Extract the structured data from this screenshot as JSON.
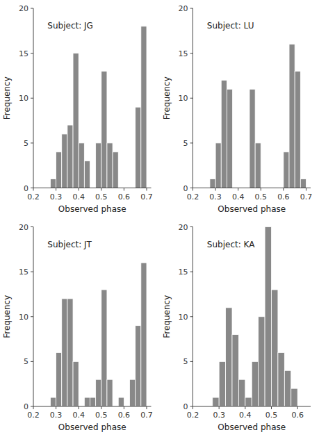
{
  "chart_data": [
    {
      "type": "histogram",
      "annotations": [
        "Subject: JG"
      ],
      "xlabel": "Observed phase",
      "ylabel": "Frequency",
      "bins": [
        0.275,
        0.3,
        0.325,
        0.35,
        0.375,
        0.4,
        0.425,
        0.45,
        0.475,
        0.5,
        0.525,
        0.55,
        0.575,
        0.6,
        0.625,
        0.65,
        0.675,
        0.7
      ],
      "values": [
        1,
        4,
        6,
        7,
        15,
        5,
        3,
        0,
        5,
        13,
        5,
        4,
        0,
        0,
        0,
        9,
        18
      ],
      "color": "#888888",
      "xlim": [
        0.2,
        0.72
      ],
      "xticks": [
        0.2,
        0.3,
        0.4,
        0.5,
        0.6,
        0.7
      ],
      "ylim": [
        0,
        20
      ],
      "yticks": [
        0,
        5,
        10,
        15,
        20
      ],
      "grid": false
    },
    {
      "type": "histogram",
      "annotations": [
        "Subject: LU"
      ],
      "xlabel": "Observed phase",
      "ylabel": "Frequency",
      "bins": [
        0.275,
        0.3,
        0.325,
        0.35,
        0.375,
        0.4,
        0.425,
        0.45,
        0.475,
        0.5,
        0.525,
        0.55,
        0.575,
        0.6,
        0.625,
        0.65,
        0.675,
        0.7
      ],
      "values": [
        1,
        5,
        12,
        11,
        0,
        0,
        0,
        11,
        5,
        0,
        0,
        0,
        0,
        4,
        16,
        13,
        1
      ],
      "color": "#888888",
      "xlim": [
        0.2,
        0.72
      ],
      "xticks": [
        0.2,
        0.3,
        0.4,
        0.5,
        0.6,
        0.7
      ],
      "ylim": [
        0,
        20
      ],
      "yticks": [
        0,
        5,
        10,
        15,
        20
      ],
      "grid": false
    },
    {
      "type": "histogram",
      "annotations": [
        "Subject: JT"
      ],
      "xlabel": "Observed phase",
      "ylabel": "Frequency",
      "bins": [
        0.275,
        0.3,
        0.325,
        0.35,
        0.375,
        0.4,
        0.425,
        0.45,
        0.475,
        0.5,
        0.525,
        0.55,
        0.575,
        0.6,
        0.625,
        0.65,
        0.675,
        0.7
      ],
      "values": [
        1,
        6,
        12,
        12,
        5,
        0,
        1,
        1,
        3,
        13,
        3,
        0,
        1,
        0,
        3,
        9,
        16
      ],
      "color": "#888888",
      "xlim": [
        0.2,
        0.72
      ],
      "xticks": [
        0.2,
        0.3,
        0.4,
        0.5,
        0.6,
        0.7
      ],
      "ylim": [
        0,
        20
      ],
      "yticks": [
        0,
        5,
        10,
        15,
        20
      ],
      "grid": false
    },
    {
      "type": "histogram",
      "annotations": [
        "Subject: KA"
      ],
      "xlabel": "Observed phase",
      "ylabel": "Frequency",
      "bins": [
        0.275,
        0.3,
        0.325,
        0.35,
        0.375,
        0.4,
        0.425,
        0.45,
        0.475,
        0.5,
        0.525,
        0.55,
        0.575,
        0.6,
        0.625
      ],
      "values": [
        1,
        5,
        11,
        8,
        3,
        1,
        5,
        10,
        20,
        13,
        6,
        4,
        2,
        0
      ],
      "color": "#888888",
      "xlim": [
        0.2,
        0.65
      ],
      "xticks": [
        0.2,
        0.3,
        0.4,
        0.5,
        0.6
      ],
      "ylim": [
        0,
        20
      ],
      "yticks": [
        0,
        5,
        10,
        15,
        20
      ],
      "grid": false
    }
  ]
}
